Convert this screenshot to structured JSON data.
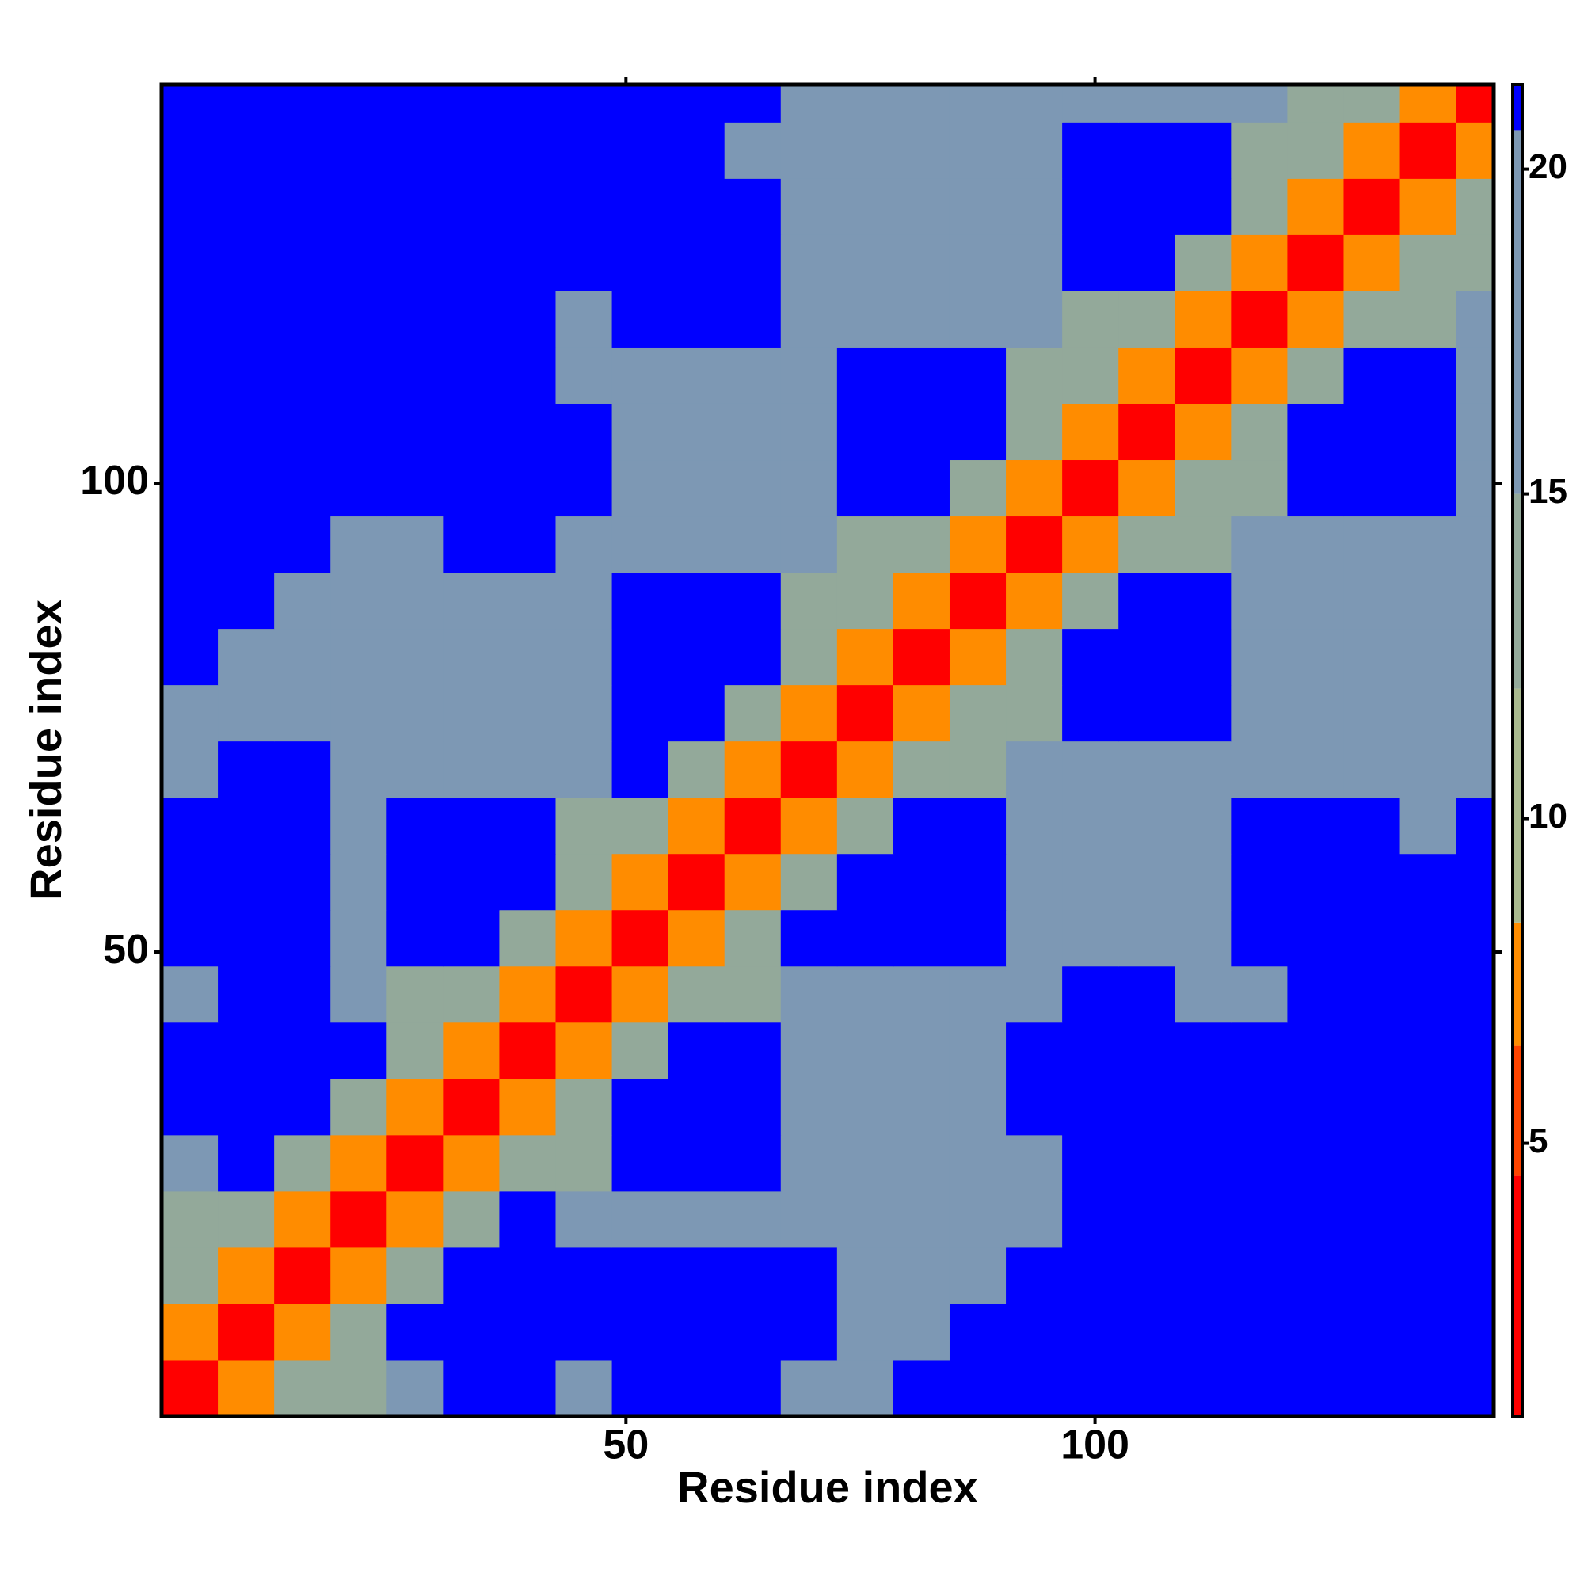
{
  "chart_data": {
    "type": "heatmap",
    "xlabel": "Residue index",
    "ylabel": "Residue index",
    "xbins": [
      0.5,
      6.5,
      12.5,
      18.5,
      24.5,
      30.5,
      36.5,
      42.5,
      48.5,
      54.5,
      60.5,
      66.5,
      72.5,
      78.5,
      84.5,
      90.5,
      96.5,
      102.5,
      108.5,
      114.5,
      120.5,
      126.5,
      132.5,
      138.5,
      144.5
    ],
    "ybins": [
      0.5,
      6.5,
      12.5,
      18.5,
      24.5,
      30.5,
      36.5,
      42.5,
      48.5,
      54.5,
      60.5,
      66.5,
      72.5,
      78.5,
      84.5,
      90.5,
      96.5,
      102.5,
      108.5,
      114.5,
      120.5,
      126.5,
      132.5,
      138.5,
      144.5
    ],
    "z": [
      [
        3,
        7,
        12,
        13,
        15,
        22,
        22,
        15,
        22,
        22,
        22,
        15,
        15,
        21,
        21,
        21,
        21,
        21,
        21,
        21,
        21,
        21,
        21,
        21
      ],
      [
        7,
        3,
        7,
        12,
        22,
        22,
        22,
        22,
        22,
        22,
        22,
        22,
        15,
        15,
        21,
        21,
        21,
        21,
        21,
        21,
        21,
        21,
        21,
        21
      ],
      [
        12,
        7,
        3,
        7,
        12,
        22,
        22,
        22,
        22,
        22,
        22,
        22,
        15,
        15,
        15,
        21,
        21,
        21,
        21,
        21,
        21,
        21,
        21,
        21
      ],
      [
        13,
        12,
        7,
        3,
        7,
        12,
        22,
        15,
        15,
        15,
        15,
        15,
        15,
        15,
        15,
        15,
        21,
        21,
        21,
        21,
        21,
        21,
        21,
        21
      ],
      [
        15,
        22,
        12,
        7,
        3,
        7,
        12,
        13,
        22,
        22,
        22,
        15,
        15,
        15,
        15,
        15,
        22,
        22,
        21,
        21,
        21,
        21,
        21,
        21
      ],
      [
        22,
        22,
        22,
        12,
        7,
        3,
        7,
        12,
        22,
        22,
        22,
        15,
        15,
        15,
        15,
        22,
        22,
        22,
        22,
        21,
        21,
        21,
        21,
        21
      ],
      [
        22,
        22,
        22,
        22,
        12,
        7,
        3,
        7,
        12,
        22,
        22,
        15,
        15,
        15,
        15,
        22,
        22,
        22,
        22,
        21,
        21,
        21,
        21,
        21
      ],
      [
        15,
        22,
        22,
        15,
        13,
        12,
        7,
        3,
        7,
        12,
        13,
        15,
        15,
        15,
        15,
        15,
        22,
        22,
        15,
        15,
        21,
        21,
        21,
        21
      ],
      [
        22,
        22,
        22,
        15,
        22,
        22,
        12,
        7,
        3,
        7,
        12,
        22,
        22,
        22,
        22,
        15,
        15,
        15,
        15,
        22,
        22,
        22,
        21,
        21
      ],
      [
        22,
        22,
        22,
        15,
        22,
        22,
        22,
        12,
        7,
        3,
        7,
        12,
        22,
        22,
        22,
        15,
        15,
        15,
        15,
        22,
        22,
        22,
        22,
        21
      ],
      [
        22,
        22,
        22,
        15,
        22,
        22,
        22,
        13,
        12,
        7,
        3,
        7,
        12,
        22,
        22,
        15,
        15,
        15,
        15,
        22,
        22,
        22,
        15,
        21
      ],
      [
        15,
        22,
        22,
        15,
        15,
        15,
        15,
        15,
        22,
        12,
        7,
        3,
        7,
        12,
        13,
        15,
        15,
        15,
        15,
        15,
        15,
        15,
        15,
        15
      ],
      [
        15,
        15,
        15,
        15,
        15,
        15,
        15,
        15,
        22,
        22,
        12,
        7,
        3,
        7,
        12,
        13,
        22,
        22,
        22,
        15,
        15,
        15,
        15,
        15
      ],
      [
        21,
        15,
        15,
        15,
        15,
        15,
        15,
        15,
        22,
        22,
        22,
        12,
        7,
        3,
        7,
        12,
        22,
        22,
        22,
        15,
        15,
        15,
        15,
        15
      ],
      [
        21,
        21,
        15,
        15,
        15,
        15,
        15,
        15,
        22,
        22,
        22,
        13,
        12,
        7,
        3,
        7,
        12,
        22,
        22,
        15,
        15,
        15,
        15,
        15
      ],
      [
        21,
        21,
        21,
        15,
        15,
        22,
        22,
        15,
        15,
        15,
        15,
        15,
        13,
        12,
        7,
        3,
        7,
        12,
        13,
        15,
        15,
        15,
        15,
        15
      ],
      [
        21,
        21,
        21,
        21,
        22,
        22,
        22,
        22,
        15,
        15,
        15,
        15,
        22,
        22,
        12,
        7,
        3,
        7,
        12,
        13,
        22,
        22,
        22,
        15
      ],
      [
        21,
        21,
        21,
        21,
        22,
        22,
        22,
        22,
        15,
        15,
        15,
        15,
        22,
        22,
        22,
        12,
        7,
        3,
        7,
        12,
        22,
        22,
        22,
        15
      ],
      [
        21,
        21,
        21,
        21,
        21,
        22,
        22,
        15,
        15,
        15,
        15,
        15,
        22,
        22,
        22,
        13,
        12,
        7,
        3,
        7,
        12,
        22,
        22,
        15
      ],
      [
        21,
        21,
        21,
        21,
        21,
        21,
        21,
        15,
        22,
        22,
        22,
        15,
        15,
        15,
        15,
        15,
        13,
        12,
        7,
        3,
        7,
        12,
        13,
        15
      ],
      [
        21,
        21,
        21,
        21,
        21,
        21,
        21,
        21,
        22,
        22,
        22,
        15,
        15,
        15,
        15,
        15,
        22,
        22,
        12,
        7,
        3,
        7,
        12,
        13
      ],
      [
        21,
        21,
        21,
        21,
        21,
        21,
        21,
        21,
        22,
        22,
        22,
        15,
        15,
        15,
        15,
        15,
        22,
        22,
        22,
        12,
        7,
        3,
        7,
        12
      ],
      [
        21,
        21,
        21,
        21,
        21,
        21,
        21,
        21,
        21,
        22,
        15,
        15,
        15,
        15,
        15,
        15,
        22,
        22,
        22,
        13,
        12,
        7,
        3,
        7
      ],
      [
        21,
        21,
        21,
        21,
        21,
        21,
        21,
        21,
        21,
        21,
        21,
        15,
        15,
        15,
        15,
        15,
        15,
        15,
        15,
        15,
        13,
        12,
        7,
        3
      ]
    ],
    "xlim": [
      0.5,
      142.5
    ],
    "ylim": [
      0.5,
      142.5
    ],
    "xticks": [
      50,
      100
    ],
    "yticks": [
      50,
      100
    ],
    "colorbar": {
      "lim": [
        0.8,
        21.3
      ],
      "ticks": [
        5,
        10,
        15,
        20
      ]
    },
    "colorscale": [
      {
        "value": 0.8,
        "color": "#ff0000"
      },
      {
        "value": 4.5,
        "color": "#ff4400"
      },
      {
        "value": 6.5,
        "color": "#ff8c00"
      },
      {
        "value": 8.4,
        "color": "#a9b98e"
      },
      {
        "value": 12,
        "color": "#93a99a"
      },
      {
        "value": 15,
        "color": "#7d98b4"
      },
      {
        "value": 20.6,
        "color": "#0000ff"
      }
    ]
  }
}
